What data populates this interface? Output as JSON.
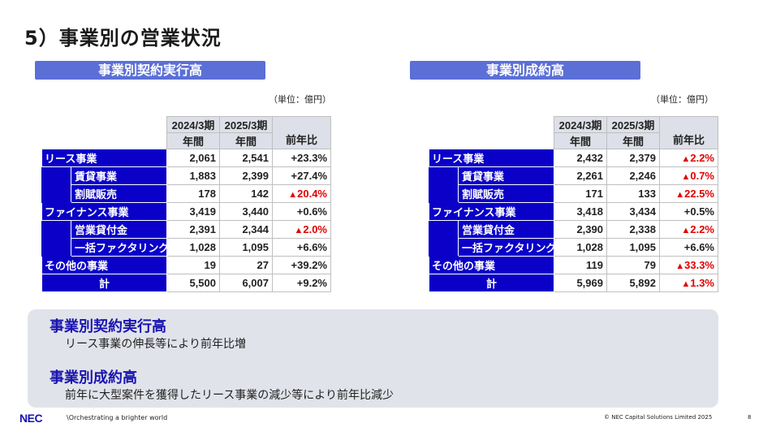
{
  "page_title": "5）事業別の営業状況",
  "colors": {
    "header_bar": "#5b6fd6",
    "category_fill": "#0a00c8",
    "negative": "#e00000",
    "summary_heading": "#1a14b0"
  },
  "left": {
    "section_title": "事業別契約実行高",
    "unit": "（単位：億円）",
    "columns": {
      "y1_period": "2024/3期",
      "y1_sub": "年間",
      "y2_period": "2025/3期",
      "y2_sub": "年間",
      "change": "前年比"
    },
    "rows": [
      {
        "label": "リース事業",
        "v1": "2,061",
        "v2": "2,541",
        "chg": "+23.3%"
      },
      {
        "label": "賃貸事業",
        "v1": "1,883",
        "v2": "2,399",
        "chg": "+27.4%"
      },
      {
        "label": "割賦販売",
        "v1": "178",
        "v2": "142",
        "tri": "▲",
        "chg": "20.4%"
      },
      {
        "label": "ファイナンス事業",
        "v1": "3,419",
        "v2": "3,440",
        "chg": "+0.6%"
      },
      {
        "label": "営業貸付金",
        "v1": "2,391",
        "v2": "2,344",
        "tri": "▲",
        "chg": "2.0%"
      },
      {
        "label": "一括ファクタリング",
        "v1": "1,028",
        "v2": "1,095",
        "chg": "+6.6%"
      },
      {
        "label": "その他の事業",
        "v1": "19",
        "v2": "27",
        "chg": "+39.2%"
      },
      {
        "label": "計",
        "v1": "5,500",
        "v2": "6,007",
        "chg": "+9.2%"
      }
    ]
  },
  "right": {
    "section_title": "事業別成約高",
    "unit": "（単位：億円）",
    "columns": {
      "y1_period": "2024/3期",
      "y1_sub": "年間",
      "y2_period": "2025/3期",
      "y2_sub": "年間",
      "change": "前年比"
    },
    "rows": [
      {
        "label": "リース事業",
        "v1": "2,432",
        "v2": "2,379",
        "tri": "▲",
        "chg": "2.2%"
      },
      {
        "label": "賃貸事業",
        "v1": "2,261",
        "v2": "2,246",
        "tri": "▲",
        "chg": "0.7%"
      },
      {
        "label": "割賦販売",
        "v1": "171",
        "v2": "133",
        "tri": "▲",
        "chg": "22.5%"
      },
      {
        "label": "ファイナンス事業",
        "v1": "3,418",
        "v2": "3,434",
        "chg": "+0.5%"
      },
      {
        "label": "営業貸付金",
        "v1": "2,390",
        "v2": "2,338",
        "tri": "▲",
        "chg": "2.2%"
      },
      {
        "label": "一括ファクタリング",
        "v1": "1,028",
        "v2": "1,095",
        "chg": "+6.6%"
      },
      {
        "label": "その他の事業",
        "v1": "119",
        "v2": "79",
        "tri": "▲",
        "chg": "33.3%"
      },
      {
        "label": "計",
        "v1": "5,969",
        "v2": "5,892",
        "tri": "▲",
        "chg": "1.3%"
      }
    ]
  },
  "summary": {
    "item1_heading": "事業別契約実行高",
    "item1_text": "リース事業の伸長等により前年比増",
    "item2_heading": "事業別成約高",
    "item2_text": "前年に大型案件を獲得したリース事業の減少等により前年比減少"
  },
  "footer": {
    "logo": "NEC",
    "tagline": "\\Orchestrating a brighter world",
    "copyright": "© NEC Capital Solutions Limited 2025",
    "page_number": "8"
  }
}
